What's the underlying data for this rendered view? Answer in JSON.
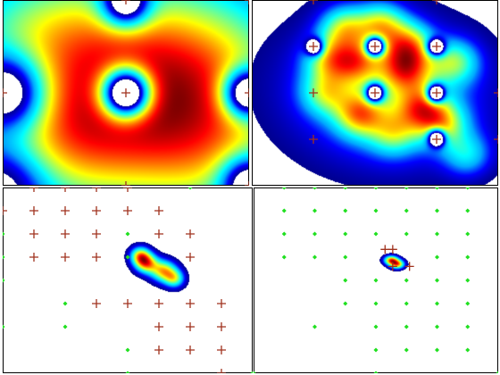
{
  "colors": {
    "plus_marker": "#a0321e",
    "diamond_marker": "#20e020",
    "frame": "#000000",
    "colormap": [
      "#00008f",
      "#0000ff",
      "#00a8ff",
      "#00ffff",
      "#80ff80",
      "#ffff00",
      "#ff8000",
      "#ff0000",
      "#800000"
    ]
  },
  "chart_data": [
    {
      "type": "heatmap",
      "panel": "top-left",
      "colormap": "jet",
      "xlim": [
        0,
        8
      ],
      "ylim": [
        0,
        6
      ],
      "plus_points": [
        {
          "x": 4,
          "y": 0
        },
        {
          "x": 8,
          "y": 0
        },
        {
          "x": 0,
          "y": 3
        },
        {
          "x": 4,
          "y": 3
        },
        {
          "x": 8,
          "y": 3
        },
        {
          "x": 4,
          "y": 6
        },
        {
          "x": 8,
          "y": 6
        }
      ],
      "diamond_points": [],
      "blobs": [
        {
          "x": 4.0,
          "y": 3.2,
          "sx": 3.6,
          "sy": 2.6,
          "a": 1.05
        },
        {
          "x": 6.3,
          "y": 2.2,
          "sx": 2.3,
          "sy": 2.0,
          "a": 0.85
        },
        {
          "x": 1.8,
          "y": 4.6,
          "sx": 2.2,
          "sy": 1.6,
          "a": 0.75
        },
        {
          "x": 1.5,
          "y": 1.0,
          "sx": 2.2,
          "sy": 1.6,
          "a": 0.7
        },
        {
          "x": 6.8,
          "y": 5.2,
          "sx": 2.0,
          "sy": 1.6,
          "a": 0.55
        }
      ],
      "holes": [
        {
          "x": 4,
          "y": 3,
          "s": 0.55,
          "d": 1.3
        },
        {
          "x": 4,
          "y": 0,
          "s": 0.55,
          "d": 1.3
        },
        {
          "x": 8,
          "y": 3,
          "s": 0.55,
          "d": 1.3
        },
        {
          "x": 8,
          "y": 6,
          "s": 0.6,
          "d": 1.3
        },
        {
          "x": 0,
          "y": 3,
          "s": 0.9,
          "d": 1.2
        },
        {
          "x": -0.3,
          "y": 6.4,
          "s": 1.1,
          "d": 1.2
        }
      ],
      "threshold": 0.05
    },
    {
      "type": "heatmap",
      "panel": "top-right",
      "colormap": "jet",
      "xlim": [
        0,
        8
      ],
      "ylim": [
        0,
        6
      ],
      "plus_points": [
        {
          "x": 2,
          "y": 0
        },
        {
          "x": 6,
          "y": 0
        },
        {
          "x": 2,
          "y": 1.5
        },
        {
          "x": 4,
          "y": 1.5
        },
        {
          "x": 6,
          "y": 1.5
        },
        {
          "x": 2,
          "y": 3
        },
        {
          "x": 4,
          "y": 3
        },
        {
          "x": 6,
          "y": 3
        },
        {
          "x": 8,
          "y": 3
        },
        {
          "x": 2,
          "y": 4.5
        },
        {
          "x": 6,
          "y": 4.5
        },
        {
          "x": 8,
          "y": 4.5
        }
      ],
      "diamond_points": [],
      "blobs": [
        {
          "x": 3.0,
          "y": 0.9,
          "sx": 0.55,
          "sy": 0.5,
          "a": 0.75
        },
        {
          "x": 4.2,
          "y": 0.8,
          "sx": 0.55,
          "sy": 0.5,
          "a": 0.8
        },
        {
          "x": 5.1,
          "y": 1.4,
          "sx": 0.55,
          "sy": 0.5,
          "a": 0.7
        },
        {
          "x": 2.5,
          "y": 1.9,
          "sx": 0.55,
          "sy": 0.5,
          "a": 0.65
        },
        {
          "x": 3.4,
          "y": 2.0,
          "sx": 0.55,
          "sy": 0.5,
          "a": 0.75
        },
        {
          "x": 5.0,
          "y": 2.2,
          "sx": 0.6,
          "sy": 0.55,
          "a": 0.9
        },
        {
          "x": 6.6,
          "y": 2.0,
          "sx": 0.55,
          "sy": 0.5,
          "a": 0.65
        },
        {
          "x": 2.4,
          "y": 3.0,
          "sx": 0.55,
          "sy": 0.5,
          "a": 0.6
        },
        {
          "x": 3.5,
          "y": 3.7,
          "sx": 0.55,
          "sy": 0.5,
          "a": 0.8
        },
        {
          "x": 5.5,
          "y": 3.5,
          "sx": 0.55,
          "sy": 0.5,
          "a": 0.75
        },
        {
          "x": 6.2,
          "y": 4.0,
          "sx": 0.55,
          "sy": 0.5,
          "a": 0.7
        },
        {
          "x": 4.6,
          "y": 4.3,
          "sx": 0.55,
          "sy": 0.5,
          "a": 0.55
        },
        {
          "x": 7.0,
          "y": 5.0,
          "sx": 0.55,
          "sy": 0.5,
          "a": 0.5
        },
        {
          "x": 4.0,
          "y": 2.6,
          "sx": 2.3,
          "sy": 1.6,
          "a": 0.35
        },
        {
          "x": 4.8,
          "y": 3.6,
          "sx": 2.0,
          "sy": 1.4,
          "a": 0.3
        }
      ],
      "holes": [
        {
          "x": 2,
          "y": 1.5,
          "s": 0.2,
          "d": 1.6
        },
        {
          "x": 4,
          "y": 1.5,
          "s": 0.2,
          "d": 1.6
        },
        {
          "x": 6,
          "y": 1.5,
          "s": 0.2,
          "d": 1.6
        },
        {
          "x": 4,
          "y": 3,
          "s": 0.2,
          "d": 1.6
        },
        {
          "x": 6,
          "y": 3,
          "s": 0.2,
          "d": 1.6
        },
        {
          "x": 6,
          "y": 4.5,
          "s": 0.2,
          "d": 1.6
        }
      ],
      "threshold": 0.05
    },
    {
      "type": "heatmap",
      "panel": "bottom-left",
      "colormap": "jet",
      "xlim": [
        0,
        8
      ],
      "ylim": [
        0,
        6
      ],
      "plus_points": [
        {
          "x": 1,
          "y": 0
        },
        {
          "x": 2,
          "y": 0
        },
        {
          "x": 3,
          "y": 0
        },
        {
          "x": 4,
          "y": 0
        },
        {
          "x": 0,
          "y": 0.75
        },
        {
          "x": 1,
          "y": 0.75
        },
        {
          "x": 2,
          "y": 0.75
        },
        {
          "x": 3,
          "y": 0.75
        },
        {
          "x": 4,
          "y": 0.75
        },
        {
          "x": 5,
          "y": 0.75
        },
        {
          "x": 1,
          "y": 1.5
        },
        {
          "x": 2,
          "y": 1.5
        },
        {
          "x": 3,
          "y": 1.5
        },
        {
          "x": 5,
          "y": 1.5
        },
        {
          "x": 6,
          "y": 1.5
        },
        {
          "x": 1,
          "y": 2.25
        },
        {
          "x": 2,
          "y": 2.25
        },
        {
          "x": 3,
          "y": 2.25
        },
        {
          "x": 6,
          "y": 2.25
        },
        {
          "x": 3,
          "y": 3.75
        },
        {
          "x": 4,
          "y": 3.75
        },
        {
          "x": 5,
          "y": 3.75
        },
        {
          "x": 6,
          "y": 3.75
        },
        {
          "x": 7,
          "y": 3.75
        },
        {
          "x": 5,
          "y": 4.5
        },
        {
          "x": 6,
          "y": 4.5
        },
        {
          "x": 7,
          "y": 4.5
        },
        {
          "x": 5,
          "y": 5.25
        },
        {
          "x": 6,
          "y": 5.25
        },
        {
          "x": 7,
          "y": 5.25
        },
        {
          "x": 7,
          "y": 6
        }
      ],
      "diamond_points": [
        {
          "x": 6,
          "y": 0
        },
        {
          "x": 0,
          "y": 1.5
        },
        {
          "x": 4,
          "y": 1.5
        },
        {
          "x": 0,
          "y": 2.25
        },
        {
          "x": 4,
          "y": 2.25
        },
        {
          "x": 0,
          "y": 3
        },
        {
          "x": 2,
          "y": 3.75
        },
        {
          "x": 0,
          "y": 4.5
        },
        {
          "x": 2,
          "y": 4.5
        },
        {
          "x": 4,
          "y": 5.25
        },
        {
          "x": 4,
          "y": 6
        },
        {
          "x": 8,
          "y": 6
        }
      ],
      "blobs": [
        {
          "x": 4.4,
          "y": 2.2,
          "sx": 0.22,
          "sy": 0.2,
          "a": 0.85
        },
        {
          "x": 4.6,
          "y": 2.45,
          "sx": 0.25,
          "sy": 0.22,
          "a": 1.0
        },
        {
          "x": 5.15,
          "y": 2.7,
          "sx": 0.28,
          "sy": 0.24,
          "a": 0.95
        },
        {
          "x": 5.5,
          "y": 2.95,
          "sx": 0.22,
          "sy": 0.2,
          "a": 0.7
        }
      ],
      "holes": [],
      "threshold": 0.05
    },
    {
      "type": "heatmap",
      "panel": "bottom-right",
      "colormap": "jet",
      "xlim": [
        0,
        8
      ],
      "ylim": [
        0,
        6
      ],
      "plus_points": [
        {
          "x": 4.3,
          "y": 2.0
        },
        {
          "x": 4.55,
          "y": 2.0
        },
        {
          "x": 4.55,
          "y": 2.55
        },
        {
          "x": 5.1,
          "y": 2.55
        }
      ],
      "diamond_points": [
        {
          "x": 1,
          "y": 0
        },
        {
          "x": 2,
          "y": 0
        },
        {
          "x": 3,
          "y": 0
        },
        {
          "x": 4,
          "y": 0
        },
        {
          "x": 5,
          "y": 0
        },
        {
          "x": 6,
          "y": 0
        },
        {
          "x": 7,
          "y": 0
        },
        {
          "x": 1,
          "y": 0.75
        },
        {
          "x": 2,
          "y": 0.75
        },
        {
          "x": 3,
          "y": 0.75
        },
        {
          "x": 4,
          "y": 0.75
        },
        {
          "x": 5,
          "y": 0.75
        },
        {
          "x": 6,
          "y": 0.75
        },
        {
          "x": 7,
          "y": 0.75
        },
        {
          "x": 1,
          "y": 1.5
        },
        {
          "x": 2,
          "y": 1.5
        },
        {
          "x": 3,
          "y": 1.5
        },
        {
          "x": 4,
          "y": 1.5
        },
        {
          "x": 5,
          "y": 1.5
        },
        {
          "x": 6,
          "y": 1.5
        },
        {
          "x": 7,
          "y": 1.5
        },
        {
          "x": 1,
          "y": 2.25
        },
        {
          "x": 2,
          "y": 2.25
        },
        {
          "x": 3,
          "y": 2.25
        },
        {
          "x": 6,
          "y": 2.25
        },
        {
          "x": 7,
          "y": 2.25
        },
        {
          "x": 3,
          "y": 3
        },
        {
          "x": 4,
          "y": 3
        },
        {
          "x": 5,
          "y": 3
        },
        {
          "x": 6,
          "y": 3
        },
        {
          "x": 7,
          "y": 3
        },
        {
          "x": 3,
          "y": 3.75
        },
        {
          "x": 4,
          "y": 3.75
        },
        {
          "x": 5,
          "y": 3.75
        },
        {
          "x": 6,
          "y": 3.75
        },
        {
          "x": 7,
          "y": 3.75
        },
        {
          "x": 2,
          "y": 4.5
        },
        {
          "x": 4,
          "y": 4.5
        },
        {
          "x": 5,
          "y": 4.5
        },
        {
          "x": 6,
          "y": 4.5
        },
        {
          "x": 7,
          "y": 4.5
        },
        {
          "x": 4,
          "y": 5.25
        },
        {
          "x": 5,
          "y": 5.25
        },
        {
          "x": 6,
          "y": 5.25
        },
        {
          "x": 7,
          "y": 5.25
        },
        {
          "x": 0,
          "y": 6
        },
        {
          "x": 4,
          "y": 6
        },
        {
          "x": 8,
          "y": 6
        }
      ],
      "blobs": [
        {
          "x": 4.5,
          "y": 2.35,
          "sx": 0.16,
          "sy": 0.1,
          "a": 0.95
        },
        {
          "x": 4.7,
          "y": 2.48,
          "sx": 0.16,
          "sy": 0.1,
          "a": 0.9
        }
      ],
      "holes": [],
      "threshold": 0.05
    }
  ]
}
